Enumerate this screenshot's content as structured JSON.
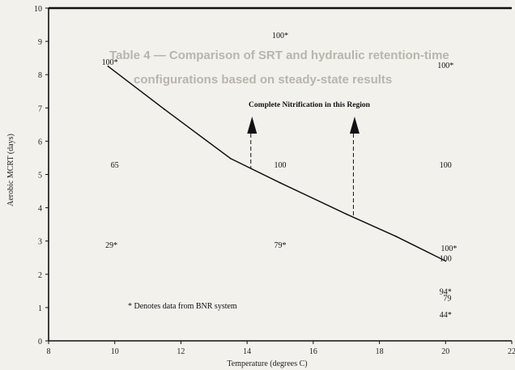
{
  "chart_data": {
    "type": "line",
    "xlabel": "Temperature (degrees C)",
    "ylabel": "Aerobic MCRT (days)",
    "xlim": [
      8,
      22
    ],
    "ylim": [
      0,
      10
    ],
    "x_ticks": [
      "8",
      "10",
      "12",
      "14",
      "16",
      "18",
      "20",
      "22"
    ],
    "x_tick_values": [
      8,
      10,
      12,
      14,
      16,
      18,
      20,
      22
    ],
    "y_ticks": [
      "0",
      "1",
      "2",
      "3",
      "4",
      "5",
      "6",
      "7",
      "8",
      "9",
      "10"
    ],
    "y_tick_values": [
      0,
      1,
      2,
      3,
      4,
      5,
      6,
      7,
      8,
      9,
      10
    ],
    "grid": false,
    "series": [
      {
        "x": [
          9.8,
          11.5,
          13.5,
          15.0,
          17.0,
          18.5,
          20.0
        ],
        "y": [
          8.25,
          6.96,
          5.48,
          4.75,
          3.81,
          3.14,
          2.4
        ]
      }
    ],
    "point_labels": [
      {
        "text": "100*",
        "x": 9.85,
        "y": 8.4
      },
      {
        "text": "100*",
        "x": 15.0,
        "y": 9.2
      },
      {
        "text": "100*",
        "x": 20.0,
        "y": 8.3
      },
      {
        "text": "65",
        "x": 10.0,
        "y": 5.3
      },
      {
        "text": "100",
        "x": 15.0,
        "y": 5.3
      },
      {
        "text": "100",
        "x": 20.0,
        "y": 5.3
      },
      {
        "text": "29*",
        "x": 9.9,
        "y": 2.9
      },
      {
        "text": "79*",
        "x": 15.0,
        "y": 2.9
      },
      {
        "text": "100*",
        "x": 20.1,
        "y": 2.8
      },
      {
        "text": "100",
        "x": 20.0,
        "y": 2.5
      },
      {
        "text": "94*",
        "x": 20.0,
        "y": 1.5
      },
      {
        "text": "79",
        "x": 20.05,
        "y": 1.3
      },
      {
        "text": "44*",
        "x": 20.0,
        "y": 0.8
      }
    ],
    "annotation": {
      "text": "Complete Nitrification in this Region",
      "arrows_x": [
        14.15,
        17.25
      ]
    },
    "note": "* Denotes data from BNR system"
  },
  "background_text": [
    "Table 4 — Comparison of SRT and hydraulic retention-time",
    "configurations based on steady-state results"
  ]
}
